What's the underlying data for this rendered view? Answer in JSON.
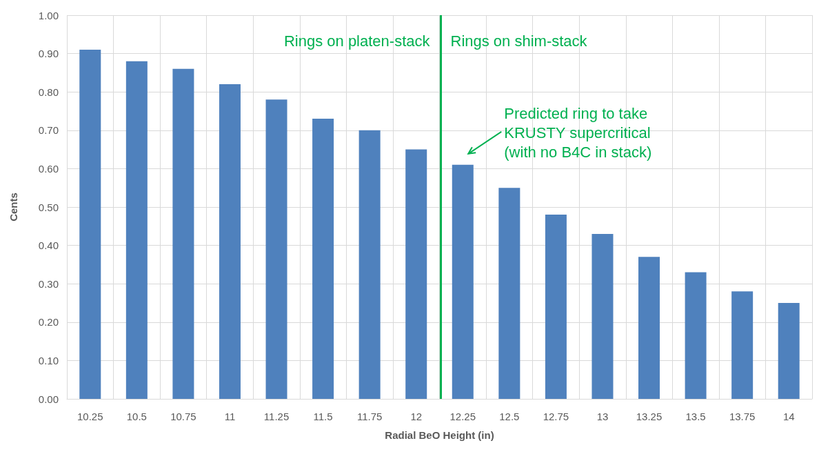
{
  "chart_data": {
    "type": "bar",
    "xlabel": "Radial BeO Height (in)",
    "ylabel": "Cents",
    "x": [
      10.25,
      10.5,
      10.75,
      11,
      11.25,
      11.5,
      11.75,
      12,
      12.25,
      12.5,
      12.75,
      13,
      13.25,
      13.5,
      13.75,
      14
    ],
    "values": [
      0.91,
      0.88,
      0.86,
      0.82,
      0.78,
      0.73,
      0.7,
      0.65,
      0.61,
      0.55,
      0.48,
      0.43,
      0.37,
      0.33,
      0.28,
      0.25
    ],
    "color": "#4f81bd",
    "xlim": [
      10.125,
      14.125
    ],
    "xticks": [
      10.25,
      10.5,
      10.75,
      11,
      11.25,
      11.5,
      11.75,
      12,
      12.25,
      12.5,
      12.75,
      13,
      13.25,
      13.5,
      13.75,
      14
    ],
    "ylim": [
      0,
      1
    ],
    "yticks": [
      {
        "value": 0,
        "label": "0.00"
      },
      {
        "value": 0.1,
        "label": "0.10"
      },
      {
        "value": 0.2,
        "label": "0.20"
      },
      {
        "value": 0.3,
        "label": "0.30"
      },
      {
        "value": 0.4,
        "label": "0.40"
      },
      {
        "value": 0.5,
        "label": "0.50"
      },
      {
        "value": 0.6,
        "label": "0.60"
      },
      {
        "value": 0.7,
        "label": "0.70"
      },
      {
        "value": 0.8,
        "label": "0.80"
      },
      {
        "value": 0.9,
        "label": "0.90"
      },
      {
        "value": 1,
        "label": "1.00"
      }
    ],
    "ref_lines": [
      {
        "axis": "x",
        "value": 12.125,
        "label": null,
        "color": "#00b050"
      }
    ],
    "annotations": [
      "Rings on platen-stack",
      "Rings on shim-stack",
      {
        "text": "Predicted ring to take\nKRUSTY supercritical\n(with no B4C in stack)",
        "x": 12.25,
        "y": 0.61
      }
    ],
    "grid": true
  }
}
